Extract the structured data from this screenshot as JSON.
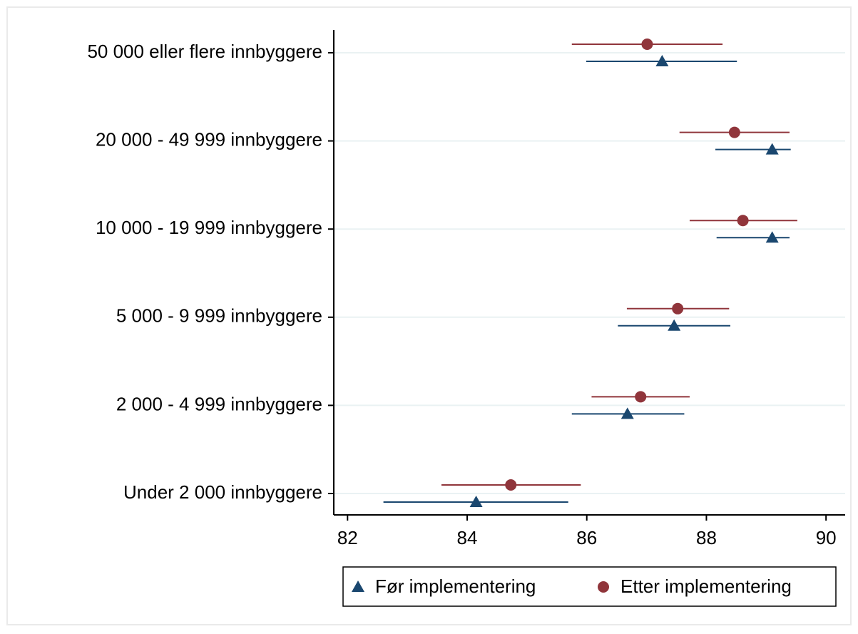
{
  "chart_data": {
    "type": "dot-errorbar",
    "categories": [
      "50 000 eller flere innbyggere",
      "20 000 - 49 999 innbyggere",
      "10 000 - 19 999 innbyggere",
      "5 000 - 9 999 innbyggere",
      "2 000 - 4 999 innbyggere",
      "Under 2 000 innbyggere"
    ],
    "series": [
      {
        "name": "Før implementering",
        "color": "#1a476f",
        "marker": "triangle",
        "values": [
          87.26,
          89.1,
          89.1,
          87.46,
          86.68,
          84.15
        ],
        "lower": [
          85.99,
          88.15,
          88.17,
          86.52,
          85.75,
          82.6
        ],
        "upper": [
          88.51,
          89.41,
          89.39,
          88.4,
          87.63,
          85.69
        ]
      },
      {
        "name": "Etter implementering",
        "color": "#90353b",
        "marker": "circle",
        "values": [
          87.01,
          88.47,
          88.61,
          87.52,
          86.9,
          84.73
        ],
        "lower": [
          85.75,
          87.55,
          87.72,
          86.67,
          86.08,
          83.57
        ],
        "upper": [
          88.27,
          89.39,
          89.52,
          88.38,
          87.72,
          85.9
        ]
      }
    ],
    "xlim": [
      81.77,
      90.32
    ],
    "xticks": [
      82,
      84,
      86,
      88,
      90
    ],
    "grid": true,
    "legend": "bottom"
  }
}
